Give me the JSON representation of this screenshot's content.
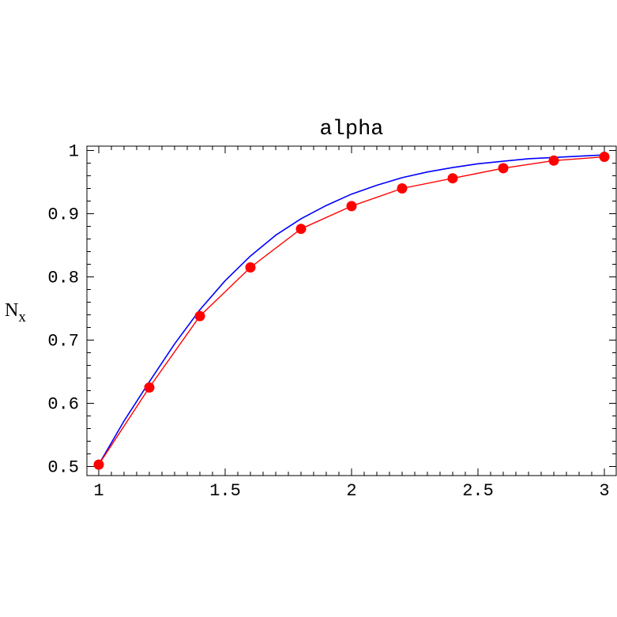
{
  "chart_data": {
    "type": "line",
    "title": "alpha",
    "ylabel_main": "N",
    "ylabel_sub": "x",
    "xlabel": "",
    "xlim": [
      1,
      3
    ],
    "ylim": [
      0.5,
      1.0
    ],
    "x_ticks": [
      "1",
      "1.5",
      "2",
      "2.5",
      "3"
    ],
    "y_ticks": [
      "0.5",
      "0.6",
      "0.7",
      "0.8",
      "0.9",
      "1"
    ],
    "grid": false,
    "colors": {
      "series_points": "#ff0000",
      "series_curve": "#0000ff",
      "axes": "#000000"
    },
    "series": [
      {
        "style": "line+markers",
        "color": "#ff0000",
        "x": [
          1.0,
          1.2,
          1.4,
          1.6,
          1.8,
          2.0,
          2.2,
          2.4,
          2.6,
          2.8,
          3.0
        ],
        "y": [
          0.503,
          0.625,
          0.738,
          0.815,
          0.876,
          0.912,
          0.94,
          0.956,
          0.972,
          0.984,
          0.99
        ]
      },
      {
        "style": "smooth-line",
        "color": "#0000ff",
        "x": [
          1.0,
          1.1,
          1.2,
          1.3,
          1.4,
          1.5,
          1.6,
          1.7,
          1.8,
          1.9,
          2.0,
          2.1,
          2.2,
          2.3,
          2.4,
          2.5,
          2.6,
          2.7,
          2.8,
          2.9,
          3.0
        ],
        "y": [
          0.503,
          0.572,
          0.634,
          0.694,
          0.748,
          0.794,
          0.833,
          0.866,
          0.892,
          0.913,
          0.931,
          0.945,
          0.957,
          0.966,
          0.973,
          0.979,
          0.983,
          0.987,
          0.989,
          0.991,
          0.993
        ]
      }
    ]
  }
}
